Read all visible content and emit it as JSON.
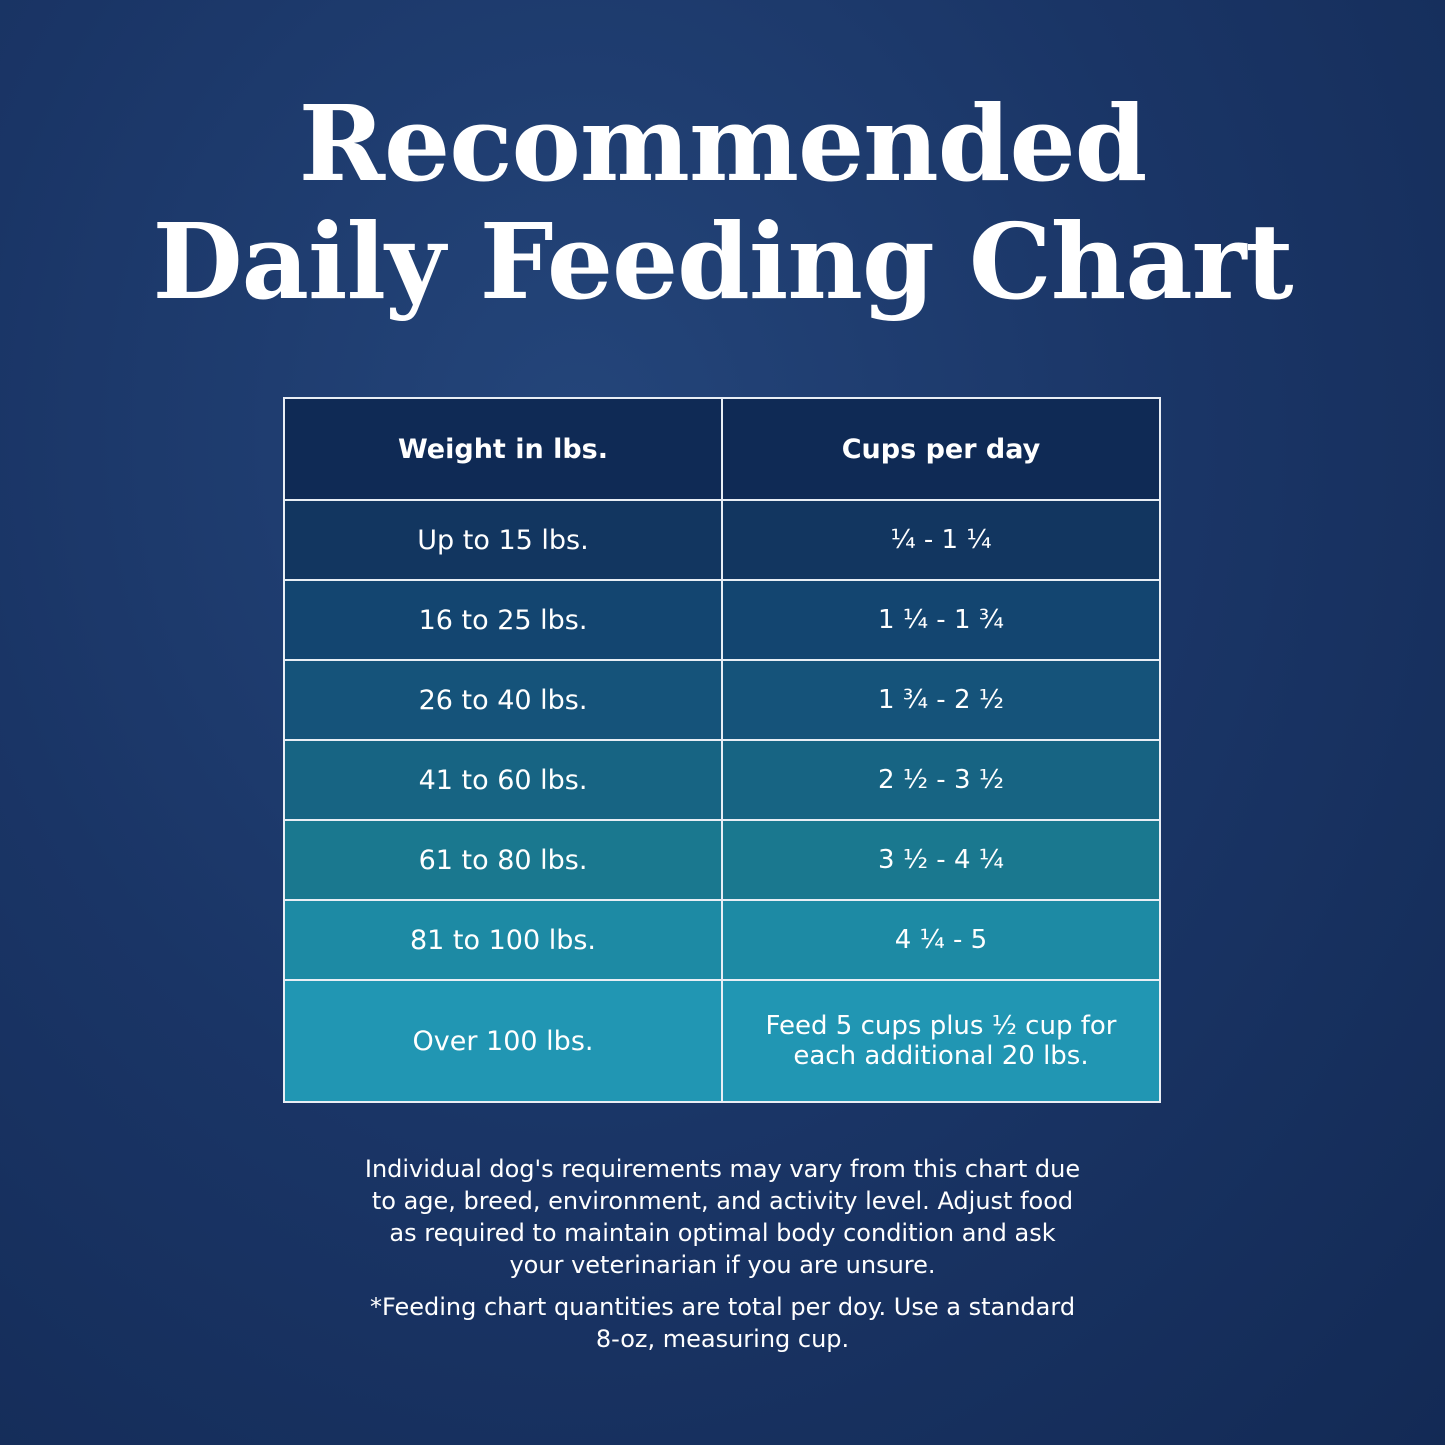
{
  "title": [
    "Recommended",
    "Daily Feeding Chart"
  ],
  "table": {
    "header": [
      "Weight in lbs.",
      "Cups per day"
    ],
    "rows": [
      [
        "Up to 15 lbs.",
        "¼ - 1 ¼"
      ],
      [
        "16 to 25 lbs.",
        "1 ¼  - 1 ¾"
      ],
      [
        "26 to 40 lbs.",
        "1 ¾  - 2 ½"
      ],
      [
        "41 to 60 lbs.",
        "2 ½  - 3 ½"
      ],
      [
        "61 to 80 lbs.",
        "3 ½  - 4 ¼"
      ],
      [
        "81 to 100 lbs.",
        "4 ¼  - 5"
      ],
      [
        "Over 100 lbs.",
        "Feed 5 cups plus ½ cup for each additional 20 lbs."
      ]
    ]
  },
  "notes": [
    "Individual dog's requirements may vary from this chart due to age, breed, environment, and activity level. Adjust food as required to maintain optimal body condition and ask your veterinarian if you are unsure.",
    "*Feeding chart quantities are total per doy. Use a standard 8-oz, measuring cup."
  ]
}
